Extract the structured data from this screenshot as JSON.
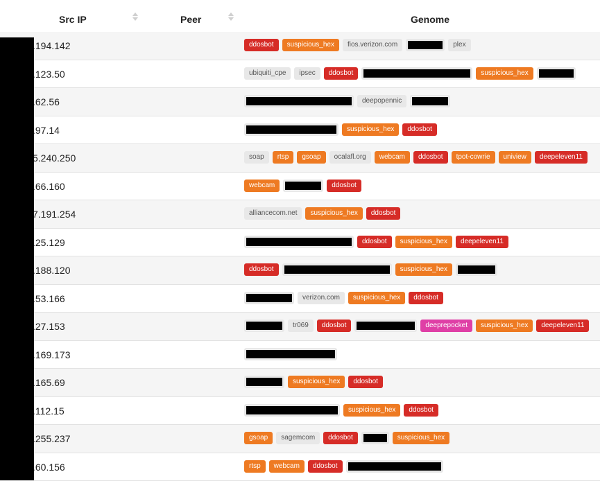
{
  "table": {
    "columns": [
      "Src IP",
      "Peer",
      "Genome"
    ],
    "rows": [
      {
        "ip": ".194.142",
        "tags": [
          {
            "t": "ddosbot",
            "c": "red"
          },
          {
            "t": "suspicious_hex",
            "c": "orange"
          },
          {
            "t": "fios.verizon.com",
            "c": "grey"
          },
          {
            "t": "",
            "c": "redacted",
            "w": 50
          },
          {
            "t": "plex",
            "c": "grey"
          }
        ]
      },
      {
        "ip": ".123.50",
        "tags": [
          {
            "t": "ubiquiti_cpe",
            "c": "grey"
          },
          {
            "t": "ipsec",
            "c": "grey"
          },
          {
            "t": "ddosbot",
            "c": "red"
          },
          {
            "t": "",
            "c": "redacted",
            "w": 154
          },
          {
            "t": "suspicious_hex",
            "c": "orange"
          },
          {
            "t": "",
            "c": "redacted",
            "w": 50
          }
        ]
      },
      {
        "ip": ".62.56",
        "tags": [
          {
            "t": "",
            "c": "redacted",
            "w": 152
          },
          {
            "t": "deepopennic",
            "c": "grey"
          },
          {
            "t": "",
            "c": "redacted",
            "w": 52
          }
        ]
      },
      {
        "ip": ".97.14",
        "tags": [
          {
            "t": "",
            "c": "redacted",
            "w": 130
          },
          {
            "t": "suspicious_hex",
            "c": "orange"
          },
          {
            "t": "ddosbot",
            "c": "red"
          }
        ]
      },
      {
        "ip": "5.240.250",
        "tags": [
          {
            "t": "soap",
            "c": "grey"
          },
          {
            "t": "rtsp",
            "c": "orange"
          },
          {
            "t": "gsoap",
            "c": "orange"
          },
          {
            "t": "ocalafl.org",
            "c": "grey"
          },
          {
            "t": "webcam",
            "c": "orange"
          },
          {
            "t": "ddosbot",
            "c": "red"
          },
          {
            "t": "tpot-cowrie",
            "c": "orange"
          },
          {
            "t": "uniview",
            "c": "orange"
          },
          {
            "t": "deepeleven11",
            "c": "red"
          }
        ]
      },
      {
        "ip": ".66.160",
        "tags": [
          {
            "t": "webcam",
            "c": "orange"
          },
          {
            "t": "",
            "c": "redacted",
            "w": 52
          },
          {
            "t": "ddosbot",
            "c": "red"
          }
        ]
      },
      {
        "ip": "7.191.254",
        "tags": [
          {
            "t": "alliancecom.net",
            "c": "grey"
          },
          {
            "t": "suspicious_hex",
            "c": "orange"
          },
          {
            "t": "ddosbot",
            "c": "red"
          }
        ]
      },
      {
        "ip": ".25.129",
        "tags": [
          {
            "t": "",
            "c": "redacted",
            "w": 152
          },
          {
            "t": "ddosbot",
            "c": "red"
          },
          {
            "t": "suspicious_hex",
            "c": "orange"
          },
          {
            "t": "deepeleven11",
            "c": "red"
          }
        ]
      },
      {
        "ip": ".188.120",
        "tags": [
          {
            "t": "ddosbot",
            "c": "red"
          },
          {
            "t": "",
            "c": "redacted",
            "w": 152
          },
          {
            "t": "suspicious_hex",
            "c": "orange"
          },
          {
            "t": "",
            "c": "redacted",
            "w": 54
          }
        ]
      },
      {
        "ip": ".53.166",
        "tags": [
          {
            "t": "",
            "c": "redacted",
            "w": 66
          },
          {
            "t": "verizon.com",
            "c": "grey"
          },
          {
            "t": "suspicious_hex",
            "c": "orange"
          },
          {
            "t": "ddosbot",
            "c": "red"
          }
        ]
      },
      {
        "ip": ".27.153",
        "tags": [
          {
            "t": "",
            "c": "redacted",
            "w": 52
          },
          {
            "t": "tr069",
            "c": "grey"
          },
          {
            "t": "ddosbot",
            "c": "red"
          },
          {
            "t": "",
            "c": "redacted",
            "w": 84
          },
          {
            "t": "deeprepocket",
            "c": "pink"
          },
          {
            "t": "suspicious_hex",
            "c": "orange"
          },
          {
            "t": "deepeleven11",
            "c": "red"
          }
        ]
      },
      {
        "ip": ".169.173",
        "tags": [
          {
            "t": "",
            "c": "redacted",
            "w": 128
          }
        ]
      },
      {
        "ip": ".165.69",
        "tags": [
          {
            "t": "",
            "c": "redacted",
            "w": 52
          },
          {
            "t": "suspicious_hex",
            "c": "orange"
          },
          {
            "t": "ddosbot",
            "c": "red"
          }
        ]
      },
      {
        "ip": ".112.15",
        "tags": [
          {
            "t": "",
            "c": "redacted",
            "w": 132
          },
          {
            "t": "suspicious_hex",
            "c": "orange"
          },
          {
            "t": "ddosbot",
            "c": "red"
          }
        ]
      },
      {
        "ip": ".255.237",
        "tags": [
          {
            "t": "gsoap",
            "c": "orange"
          },
          {
            "t": "sagemcom",
            "c": "grey"
          },
          {
            "t": "ddosbot",
            "c": "red"
          },
          {
            "t": "",
            "c": "redacted",
            "w": 34
          },
          {
            "t": "suspicious_hex",
            "c": "orange"
          }
        ]
      },
      {
        "ip": ".60.156",
        "tags": [
          {
            "t": "rtsp",
            "c": "orange"
          },
          {
            "t": "webcam",
            "c": "orange"
          },
          {
            "t": "ddosbot",
            "c": "red"
          },
          {
            "t": "",
            "c": "redacted",
            "w": 134
          }
        ]
      }
    ]
  },
  "icons": {
    "sort": "sort-icon"
  }
}
